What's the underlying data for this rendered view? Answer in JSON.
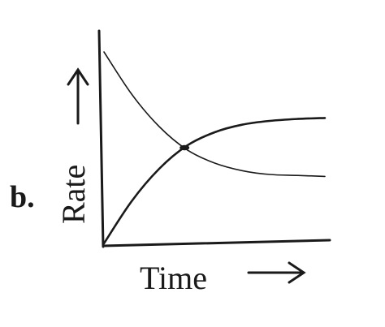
{
  "panel_label": "b.",
  "chart_data": {
    "type": "line",
    "xlabel": "Time",
    "ylabel": "Rate",
    "grid": false,
    "series": [
      {
        "values": [
          1.0,
          0.78,
          0.61,
          0.49,
          0.42,
          0.38,
          0.36,
          0.355,
          0.35
        ]
      },
      {
        "values": [
          0.0,
          0.22,
          0.39,
          0.51,
          0.58,
          0.62,
          0.64,
          0.65,
          0.655
        ]
      }
    ],
    "x": [
      0,
      1,
      2,
      3,
      4,
      5,
      6,
      7,
      8
    ]
  },
  "colors": {
    "ink": "#1a1a1a",
    "background": "#ffffff"
  }
}
